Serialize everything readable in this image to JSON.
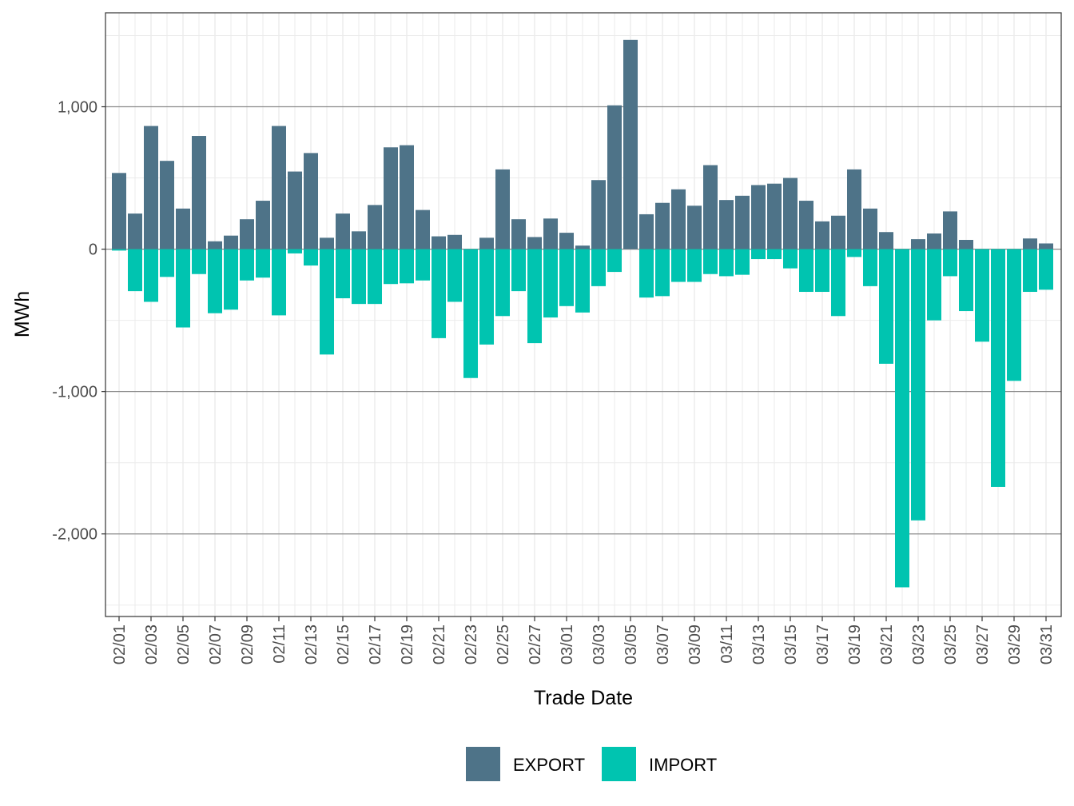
{
  "chart_data": {
    "type": "bar",
    "stacked": true,
    "xlabel": "Trade Date",
    "ylabel": "MWh",
    "ylim": [
      -2580,
      1660
    ],
    "y_ticks": [
      -2000,
      -1000,
      0,
      1000
    ],
    "y_tick_labels": [
      "-2,000",
      "-1,000",
      "0",
      "1,000"
    ],
    "minor_y_ticks": [
      -2500,
      -1500,
      -500,
      500,
      1500
    ],
    "categories": [
      "02/01",
      "02/02",
      "02/03",
      "02/04",
      "02/05",
      "02/06",
      "02/07",
      "02/08",
      "02/09",
      "02/10",
      "02/11",
      "02/12",
      "02/13",
      "02/14",
      "02/15",
      "02/16",
      "02/17",
      "02/18",
      "02/19",
      "02/20",
      "02/21",
      "02/22",
      "02/23",
      "02/24",
      "02/25",
      "02/26",
      "02/27",
      "02/28",
      "03/01",
      "03/02",
      "03/03",
      "03/04",
      "03/05",
      "03/06",
      "03/07",
      "03/08",
      "03/09",
      "03/10",
      "03/11",
      "03/12",
      "03/13",
      "03/14",
      "03/15",
      "03/16",
      "03/17",
      "03/18",
      "03/19",
      "03/20",
      "03/21",
      "03/22",
      "03/23",
      "03/24",
      "03/25",
      "03/26",
      "03/27",
      "03/28",
      "03/29",
      "03/30",
      "03/31"
    ],
    "x_tick_labels": [
      "02/01",
      "02/03",
      "02/05",
      "02/07",
      "02/09",
      "02/11",
      "02/13",
      "02/15",
      "02/17",
      "02/19",
      "02/21",
      "02/23",
      "02/25",
      "02/27",
      "03/01",
      "03/03",
      "03/05",
      "03/07",
      "03/09",
      "03/11",
      "03/13",
      "03/15",
      "03/17",
      "03/19",
      "03/21",
      "03/23",
      "03/25",
      "03/27",
      "03/29",
      "03/31"
    ],
    "legend_position": "bottom",
    "series": [
      {
        "name": "EXPORT",
        "color": "#4e7388",
        "values": [
          535,
          250,
          865,
          620,
          285,
          795,
          55,
          95,
          210,
          340,
          865,
          545,
          675,
          80,
          250,
          125,
          310,
          715,
          730,
          275,
          90,
          100,
          0,
          80,
          560,
          210,
          85,
          215,
          115,
          25,
          485,
          1010,
          1470,
          245,
          325,
          420,
          305,
          590,
          345,
          375,
          450,
          460,
          500,
          340,
          195,
          235,
          560,
          285,
          120,
          0,
          70,
          110,
          265,
          65,
          0,
          0,
          0,
          75,
          40
        ]
      },
      {
        "name": "IMPORT",
        "color": "#00c4b0",
        "values": [
          -10,
          -295,
          -370,
          -195,
          -550,
          -175,
          -450,
          -425,
          -220,
          -200,
          -465,
          -30,
          -115,
          -740,
          -345,
          -385,
          -385,
          -245,
          -240,
          -220,
          -625,
          -370,
          -905,
          -670,
          -470,
          -295,
          -660,
          -480,
          -400,
          -445,
          -260,
          -160,
          0,
          -340,
          -330,
          -230,
          -230,
          -175,
          -190,
          -180,
          -70,
          -70,
          -135,
          -300,
          -300,
          -470,
          -55,
          -260,
          -805,
          -2375,
          -1905,
          -500,
          -190,
          -435,
          -650,
          -1670,
          -925,
          -300,
          -285
        ]
      }
    ]
  }
}
